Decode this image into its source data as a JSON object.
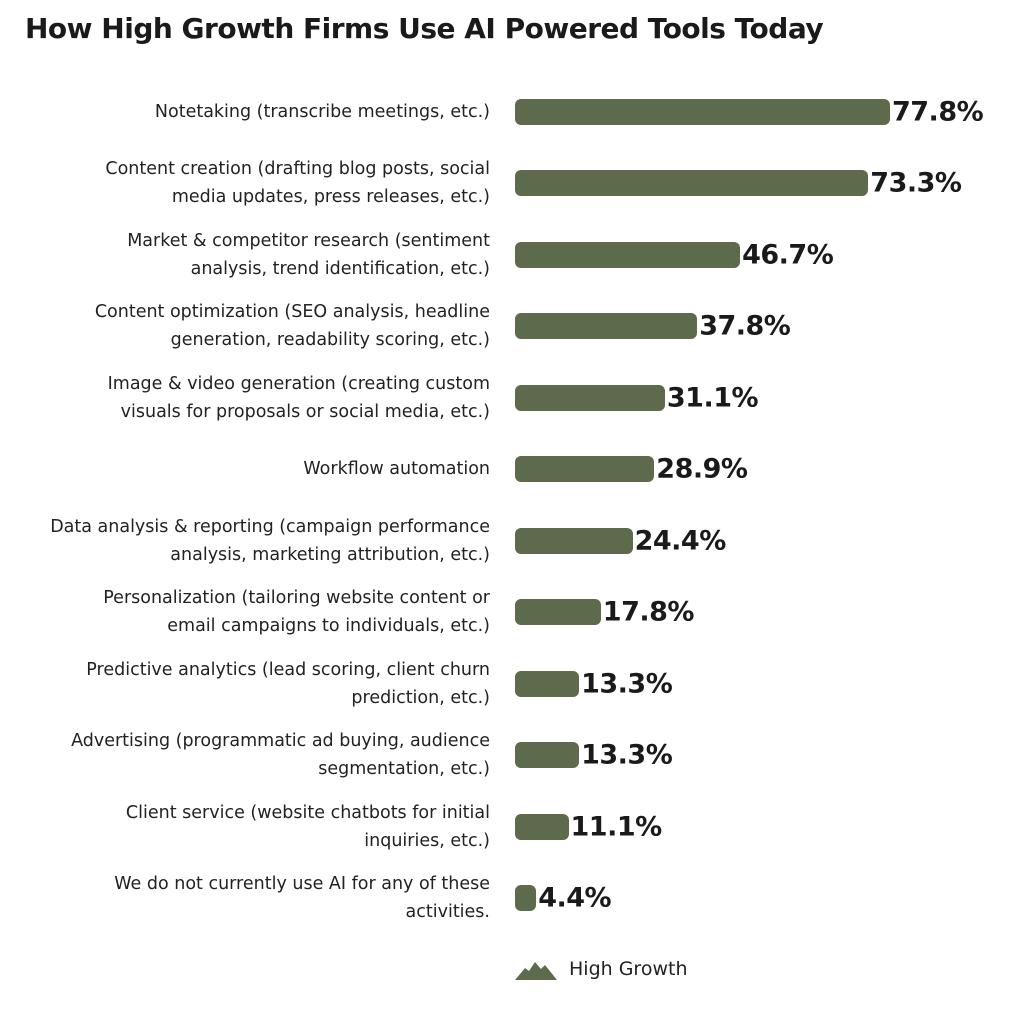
{
  "chart_data": {
    "type": "bar",
    "orientation": "horizontal",
    "title": "How High Growth Firms Use AI Powered Tools Today",
    "categories": [
      "Notetaking (transcribe meetings, etc.)",
      "Content creation (drafting blog posts, social media updates, press releases, etc.)",
      "Market & competitor research (sentiment analysis, trend identification, etc.)",
      "Content optimization (SEO analysis, headline generation, readability scoring, etc.)",
      "Image & video generation (creating custom visuals for proposals or social media, etc.)",
      "Workflow automation",
      "Data analysis & reporting (campaign performance analysis, marketing attribution, etc.)",
      "Personalization (tailoring website content or email campaigns to individuals, etc.)",
      "Predictive analytics (lead scoring, client churn prediction, etc.)",
      "Advertising (programmatic ad buying, audience segmentation, etc.)",
      "Client service (website chatbots for initial inquiries, etc.)",
      "We do not currently use AI for any of these activities."
    ],
    "series": [
      {
        "name": "High Growth",
        "values": [
          77.8,
          73.3,
          46.7,
          37.8,
          31.1,
          28.9,
          24.4,
          17.8,
          13.3,
          13.3,
          11.1,
          4.4
        ],
        "color": "#5e6a4c"
      }
    ],
    "data_labels": [
      "77.8%",
      "73.3%",
      "46.7%",
      "37.8%",
      "31.1%",
      "28.9%",
      "24.4%",
      "17.8%",
      "13.3%",
      "13.3%",
      "11.1%",
      "4.4%"
    ],
    "legend": {
      "position": "bottom",
      "icon": "mountain-icon"
    },
    "grid": false
  }
}
